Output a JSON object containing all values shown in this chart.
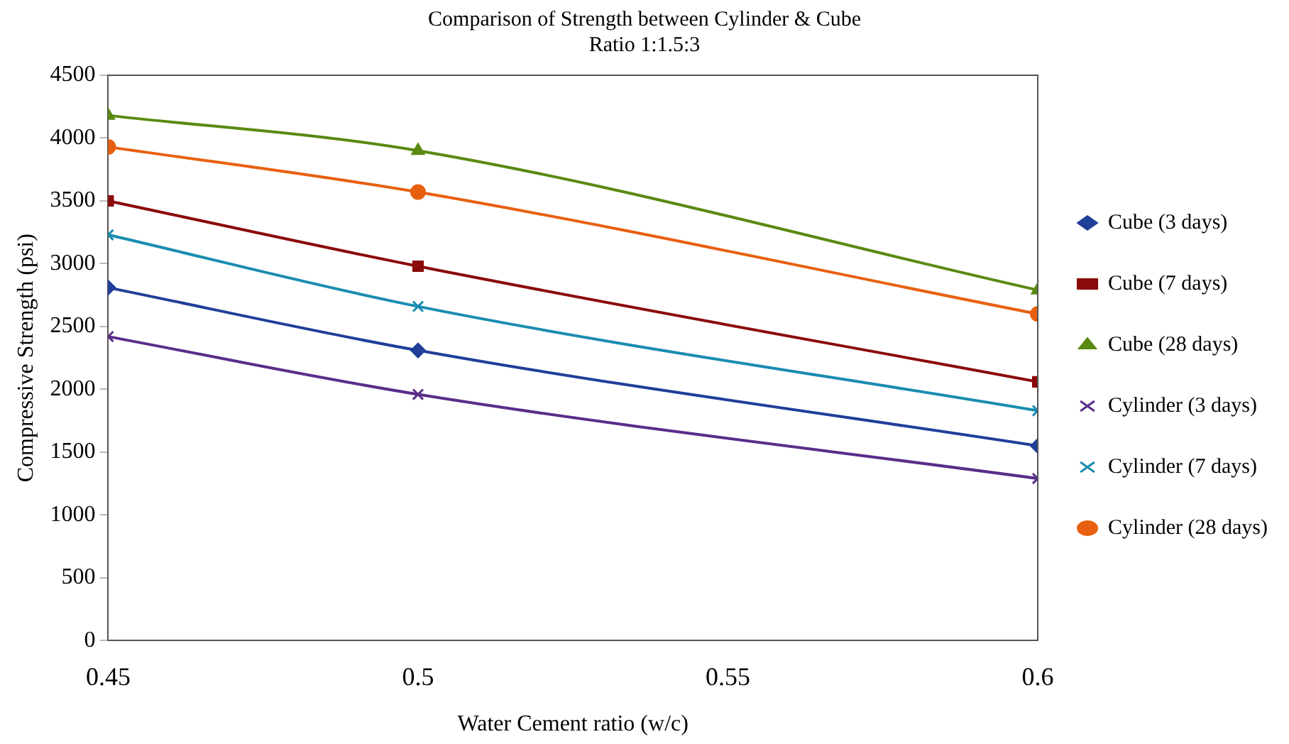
{
  "chart_data": {
    "type": "line",
    "title": "Comparison of Strength between Cylinder & Cube",
    "subtitle": "Ratio 1:1.5:3",
    "xlabel": "Water Cement ratio (w/c)",
    "ylabel": "Compressive Strength (psi)",
    "x": [
      0.45,
      0.5,
      0.6
    ],
    "xlim": [
      0.45,
      0.6
    ],
    "xticks": [
      0.45,
      0.5,
      0.55,
      0.6
    ],
    "ylim": [
      0,
      4500
    ],
    "yticks": [
      0,
      500,
      1000,
      1500,
      2000,
      2500,
      3000,
      3500,
      4000,
      4500
    ],
    "grid": false,
    "legend": "right",
    "series": [
      {
        "name": "Cube (3 days)",
        "color": "#1f3f99",
        "marker": "diamond",
        "values": [
          2810,
          2310,
          1550
        ]
      },
      {
        "name": "Cube (7 days)",
        "color": "#8b0a0a",
        "marker": "square",
        "values": [
          3500,
          2980,
          2060
        ]
      },
      {
        "name": "Cube (28 days)",
        "color": "#5a8a12",
        "marker": "triangle",
        "values": [
          4180,
          3900,
          2790
        ]
      },
      {
        "name": "Cylinder (3 days)",
        "color": "#5a2d8a",
        "marker": "cross",
        "values": [
          2420,
          1960,
          1290
        ]
      },
      {
        "name": "Cylinder (7 days)",
        "color": "#1a8cb0",
        "marker": "cross",
        "values": [
          3230,
          2660,
          1830
        ]
      },
      {
        "name": "Cylinder (28 days)",
        "color": "#e8600f",
        "marker": "circle",
        "values": [
          3930,
          3570,
          2600
        ]
      }
    ]
  }
}
